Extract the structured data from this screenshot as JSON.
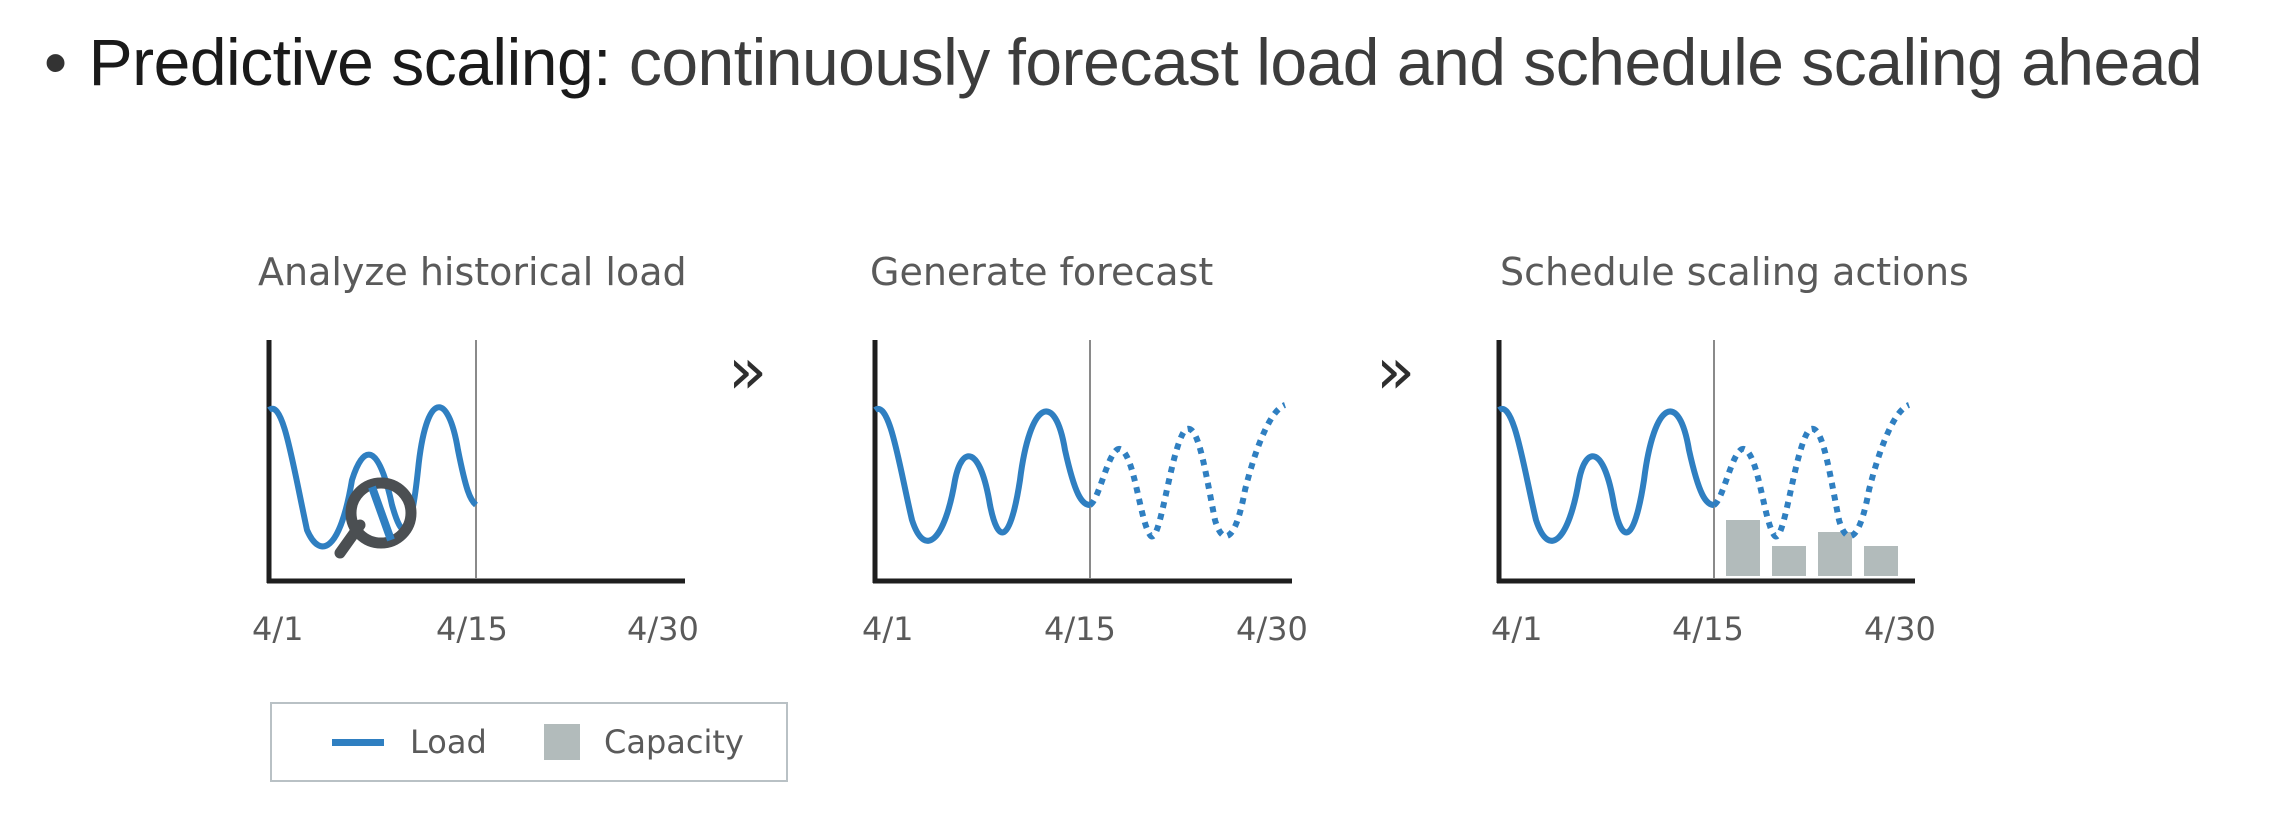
{
  "heading": {
    "bullet": "•",
    "lead": "Predictive scaling:",
    "rest": " continuously forecast load and schedule scaling ahead"
  },
  "arrow_glyph": "»",
  "panels": [
    {
      "title": "Analyze historical load",
      "ticks": [
        "4/1",
        "4/15",
        "4/30"
      ]
    },
    {
      "title": "Generate forecast",
      "ticks": [
        "4/1",
        "4/15",
        "4/30"
      ]
    },
    {
      "title": "Schedule scaling actions",
      "ticks": [
        "4/1",
        "4/15",
        "4/30"
      ]
    }
  ],
  "legend": {
    "load_label": "Load",
    "capacity_label": "Capacity"
  },
  "colors": {
    "load": "#2f7fc1",
    "capacity": "#b2bbbb",
    "axis": "#1e1e1e",
    "divider": "#8a8a8a",
    "magnifier": "#4b4f52"
  },
  "icons": [
    "magnifier-icon",
    "double-chevron-right-icon"
  ]
}
